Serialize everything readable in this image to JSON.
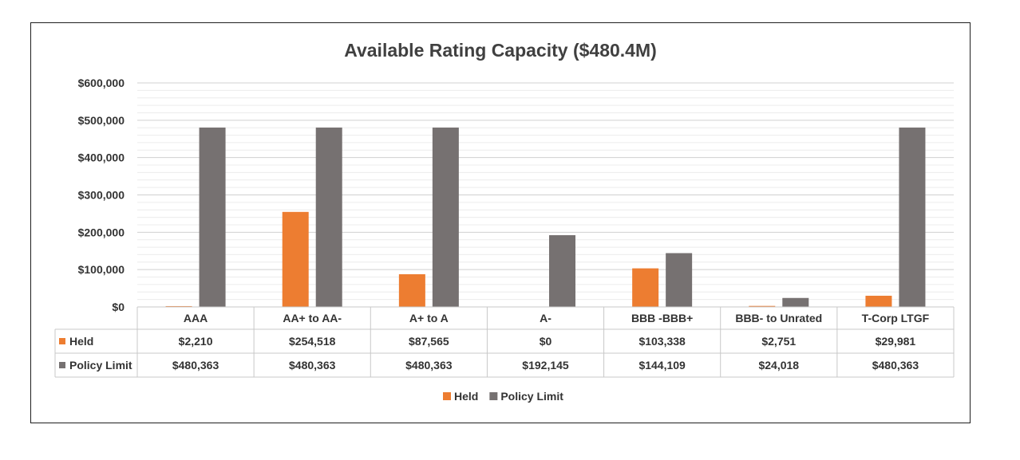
{
  "chart_data": {
    "type": "bar",
    "title": "Available Rating Capacity ($480.4M)",
    "categories": [
      "AAA",
      "AA+ to AA-",
      "A+ to A",
      "A-",
      "BBB -BBB+",
      "BBB- to Unrated",
      "T-Corp LTGF"
    ],
    "series": [
      {
        "name": "Held",
        "color": "#ED7D31",
        "values": [
          2210,
          254518,
          87565,
          0,
          103338,
          2751,
          29981
        ],
        "labels": [
          "$2,210",
          "$254,518",
          "$87,565",
          "$0",
          "$103,338",
          "$2,751",
          "$29,981"
        ]
      },
      {
        "name": "Policy Limit",
        "color": "#767171",
        "values": [
          480363,
          480363,
          480363,
          192145,
          144109,
          24018,
          480363
        ],
        "labels": [
          "$480,363",
          "$480,363",
          "$480,363",
          "$192,145",
          "$144,109",
          "$24,018",
          "$480,363"
        ]
      }
    ],
    "ylim": [
      0,
      600000
    ],
    "yticks": [
      0,
      100000,
      200000,
      300000,
      400000,
      500000,
      600000
    ],
    "ytick_labels": [
      "$0",
      "$100,000",
      "$200,000",
      "$300,000",
      "$400,000",
      "$500,000",
      "$600,000"
    ],
    "grid": true,
    "data_table": true,
    "legend_position": "bottom"
  }
}
